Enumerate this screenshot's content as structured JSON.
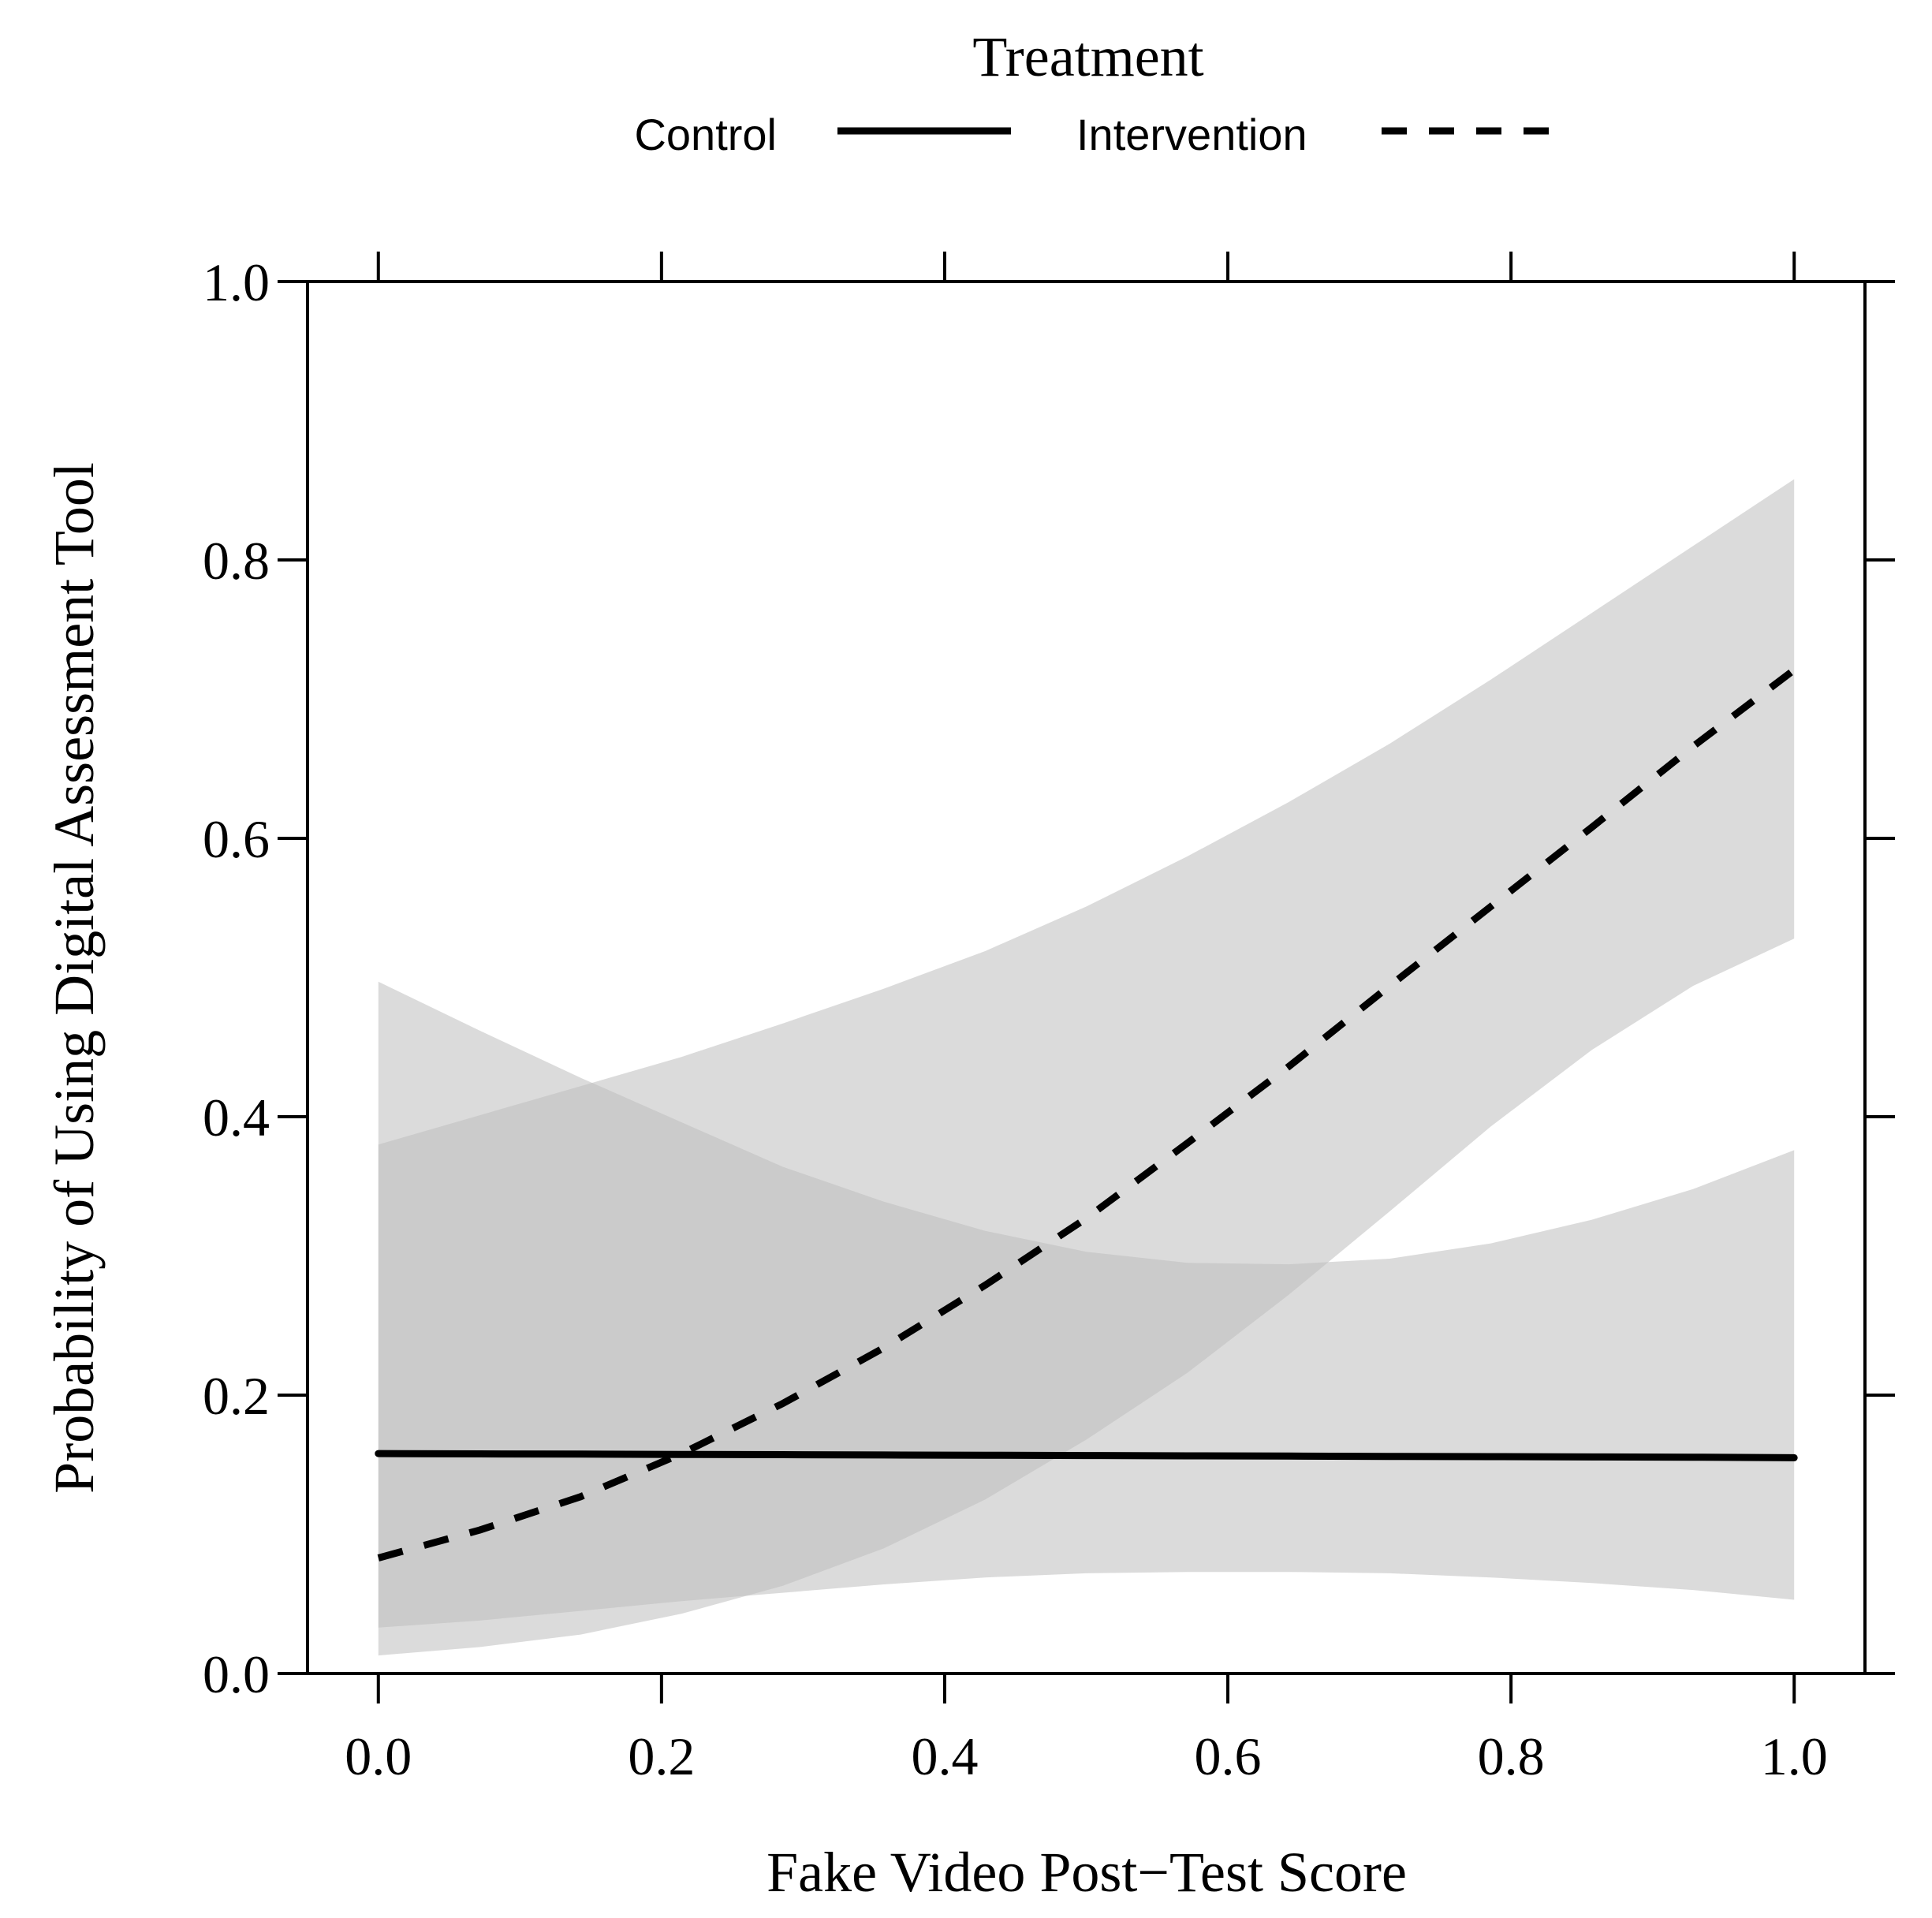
{
  "chart_data": {
    "type": "line",
    "xlabel": "Fake Video Post−Test Score",
    "ylabel": "Probability of Using Digital Assessment Tool",
    "xlim": [
      -0.05,
      1.05
    ],
    "ylim": [
      0,
      1
    ],
    "x_ticks": [
      0.0,
      0.2,
      0.4,
      0.6,
      0.8,
      1.0
    ],
    "x_tick_labels": [
      "0.0",
      "0.2",
      "0.4",
      "0.6",
      "0.8",
      "1.0"
    ],
    "y_ticks": [
      0.0,
      0.2,
      0.4,
      0.6,
      0.8,
      1.0
    ],
    "y_tick_labels": [
      "0.0",
      "0.2",
      "0.4",
      "0.6",
      "0.8",
      "1.0"
    ],
    "grid": false,
    "legend": {
      "title": "Treatment",
      "placement": "top",
      "entries": [
        {
          "label": "Control",
          "line_style": "solid"
        },
        {
          "label": "Intervention",
          "line_style": "dashed"
        }
      ]
    },
    "colors": {
      "line": "#000000",
      "band": "#bdbdbd",
      "axis": "#000000"
    },
    "series": [
      {
        "name": "Control",
        "line_style": "solid",
        "x": [
          0.0,
          0.0714,
          0.1429,
          0.2143,
          0.2857,
          0.3571,
          0.4286,
          0.5,
          0.5714,
          0.6429,
          0.7143,
          0.7857,
          0.8571,
          0.9286,
          1.0
        ],
        "y": [
          0.158,
          0.1578,
          0.1576,
          0.1574,
          0.1572,
          0.157,
          0.1568,
          0.1566,
          0.1564,
          0.1562,
          0.156,
          0.1558,
          0.1556,
          0.1554,
          0.155
        ],
        "lower": [
          0.033,
          0.038,
          0.045,
          0.052,
          0.058,
          0.064,
          0.069,
          0.072,
          0.073,
          0.073,
          0.072,
          0.069,
          0.065,
          0.06,
          0.053
        ],
        "upper": [
          0.497,
          0.462,
          0.428,
          0.396,
          0.364,
          0.339,
          0.318,
          0.303,
          0.295,
          0.294,
          0.298,
          0.309,
          0.326,
          0.348,
          0.376
        ]
      },
      {
        "name": "Intervention",
        "line_style": "dashed",
        "x": [
          0.0,
          0.0714,
          0.1429,
          0.2143,
          0.2857,
          0.3571,
          0.4286,
          0.5,
          0.5714,
          0.6429,
          0.7143,
          0.7857,
          0.8571,
          0.9286,
          1.0
        ],
        "y": [
          0.083,
          0.103,
          0.127,
          0.158,
          0.194,
          0.234,
          0.279,
          0.327,
          0.381,
          0.436,
          0.494,
          0.551,
          0.608,
          0.666,
          0.721
        ],
        "lower": [
          0.013,
          0.019,
          0.028,
          0.043,
          0.063,
          0.09,
          0.125,
          0.168,
          0.216,
          0.272,
          0.332,
          0.393,
          0.448,
          0.494,
          0.528
        ],
        "upper": [
          0.38,
          0.401,
          0.422,
          0.443,
          0.467,
          0.492,
          0.519,
          0.551,
          0.587,
          0.626,
          0.668,
          0.714,
          0.762,
          0.81,
          0.858
        ]
      }
    ]
  }
}
